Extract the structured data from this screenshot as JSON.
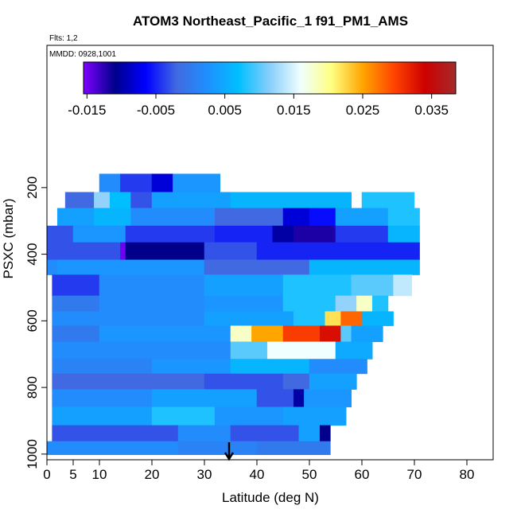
{
  "chart_data": {
    "type": "heatmap",
    "title": "ATOM3 Northeast_Pacific_1 f91_PM1_AMS",
    "subtitle": "Flts: 1,2",
    "annotation": "MMDD: 0928,1001",
    "x_label": "Latitude (deg N)",
    "y_label": "PSXC (mbar)",
    "xlim": [
      0,
      85
    ],
    "xticks": [
      0,
      5,
      10,
      20,
      30,
      40,
      50,
      60,
      70,
      80
    ],
    "ylim": [
      1017,
      -227
    ],
    "yticks": [
      200,
      400,
      600,
      800,
      1000
    ],
    "colorbar": {
      "lim": [
        -0.0155,
        0.0385
      ],
      "ticks": [
        -0.015,
        -0.005,
        0.005,
        0.015,
        0.025,
        0.035
      ],
      "colors": [
        "#7f00ff",
        "#00008b",
        "#0000ff",
        "#4169e1",
        "#1e90ff",
        "#00bfff",
        "#87cefa",
        "#f0ffff",
        "#ffff80",
        "#ffa500",
        "#ff4500",
        "#cd0000",
        "#a52a2a"
      ]
    },
    "rows": [
      {
        "p": [
          159,
          214
        ],
        "lat": [
          10,
          14,
          20,
          24,
          33
        ],
        "values": [
          0.002,
          -0.004,
          -0.008,
          0.003
        ]
      },
      {
        "p": [
          214,
          262
        ],
        "lat": [
          3.5,
          9,
          12,
          16,
          20,
          35,
          58
        ],
        "values": [
          -0.002,
          0.012,
          0.007,
          -0.003,
          0.004,
          0.006
        ]
      },
      {
        "p": [
          214,
          262
        ],
        "lat": [
          60,
          70
        ],
        "values": [
          0.008
        ]
      },
      {
        "p": [
          262,
          315
        ],
        "lat": [
          2,
          9,
          16,
          32,
          45,
          50,
          55,
          65,
          71
        ],
        "values": [
          0.004,
          0.006,
          0.002,
          -0.002,
          -0.008,
          -0.006,
          0.004,
          0.008
        ]
      },
      {
        "p": [
          315,
          365
        ],
        "lat": [
          0,
          5,
          15,
          32,
          43,
          47,
          55,
          65,
          71
        ],
        "values": [
          -0.003,
          0.003,
          -0.004,
          -0.005,
          -0.01,
          -0.012,
          -0.004,
          0.006
        ]
      },
      {
        "p": [
          365,
          417
        ],
        "lat": [
          0,
          14,
          15,
          30,
          40,
          71
        ],
        "values": [
          -0.003,
          -0.015,
          -0.011,
          -0.003,
          -0.005
        ]
      },
      {
        "p": [
          417,
          462
        ],
        "lat": [
          0,
          2,
          30,
          50,
          71
        ],
        "values": [
          0.002,
          0.003,
          -0.002,
          0.006
        ]
      },
      {
        "p": [
          462,
          525
        ],
        "lat": [
          1,
          10,
          30,
          45,
          58,
          66,
          69.5
        ],
        "values": [
          -0.004,
          0.002,
          0.004,
          0.008,
          0.01,
          0.014
        ]
      },
      {
        "p": [
          525,
          572
        ],
        "lat": [
          1,
          10,
          30,
          45,
          55,
          59,
          62,
          65
        ],
        "values": [
          0.0,
          0.002,
          0.003,
          0.008,
          0.012,
          0.018,
          0.008
        ]
      },
      {
        "p": [
          572,
          615
        ],
        "lat": [
          1,
          30,
          47,
          53,
          56,
          60,
          66
        ],
        "values": [
          0.002,
          0.004,
          0.008,
          0.022,
          0.028,
          0.006
        ]
      },
      {
        "p": [
          615,
          663
        ],
        "lat": [
          1,
          10,
          35,
          39,
          45,
          52,
          56,
          58,
          64
        ],
        "values": [
          0.0,
          0.003,
          0.018,
          0.025,
          0.03,
          0.033,
          0.01,
          0.004
        ]
      },
      {
        "p": [
          663,
          715
        ],
        "lat": [
          1,
          35,
          42,
          55,
          62
        ],
        "values": [
          0.002,
          0.01,
          0.016,
          0.005
        ]
      },
      {
        "p": [
          715,
          759
        ],
        "lat": [
          1,
          20,
          35,
          50,
          61
        ],
        "values": [
          0.001,
          0.003,
          0.006,
          0.002
        ]
      },
      {
        "p": [
          759,
          806
        ],
        "lat": [
          1,
          30,
          45,
          50,
          59
        ],
        "values": [
          -0.002,
          -0.003,
          -0.002,
          0.004
        ]
      },
      {
        "p": [
          806,
          859
        ],
        "lat": [
          1,
          20,
          40,
          47,
          49,
          58
        ],
        "values": [
          0.002,
          0.004,
          -0.003,
          -0.01,
          0.003
        ]
      },
      {
        "p": [
          859,
          914
        ],
        "lat": [
          1,
          20,
          32,
          45,
          57
        ],
        "values": [
          0.004,
          0.008,
          0.003,
          0.004
        ]
      },
      {
        "p": [
          914,
          962
        ],
        "lat": [
          1,
          25,
          35,
          48,
          52,
          54
        ],
        "values": [
          -0.003,
          0.002,
          -0.003,
          0.004,
          -0.011
        ]
      },
      {
        "p": [
          962,
          1002
        ],
        "lat": [
          0,
          25,
          40,
          54
        ],
        "values": [
          0.002,
          0.001,
          0.0
        ]
      }
    ]
  }
}
